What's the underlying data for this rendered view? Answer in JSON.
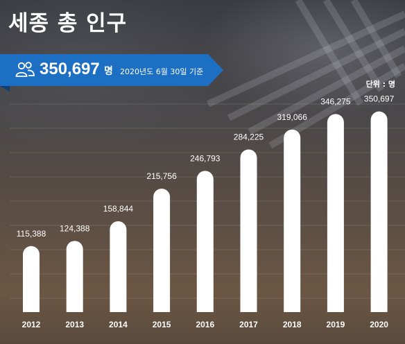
{
  "title": "세종 총 인구",
  "summary": {
    "total": "350,697",
    "unit": "명",
    "as_of": "2020년도 6월 30일 기준"
  },
  "unit_note": "단위 : 명",
  "chart_data": {
    "type": "bar",
    "categories": [
      "2012",
      "2013",
      "2014",
      "2015",
      "2016",
      "2017",
      "2018",
      "2019",
      "2020"
    ],
    "values": [
      115388,
      124388,
      158844,
      215756,
      246793,
      284225,
      319066,
      346275,
      350697
    ],
    "value_labels": [
      "115,388",
      "124,388",
      "158,844",
      "215,756",
      "246,793",
      "284,225",
      "319,066",
      "346,275",
      "350,697"
    ],
    "ylim": [
      0,
      400000
    ],
    "grid": true,
    "bar_color": "#ffffff"
  },
  "colors": {
    "banner": "#1d6fc3",
    "text": "#ffffff"
  }
}
